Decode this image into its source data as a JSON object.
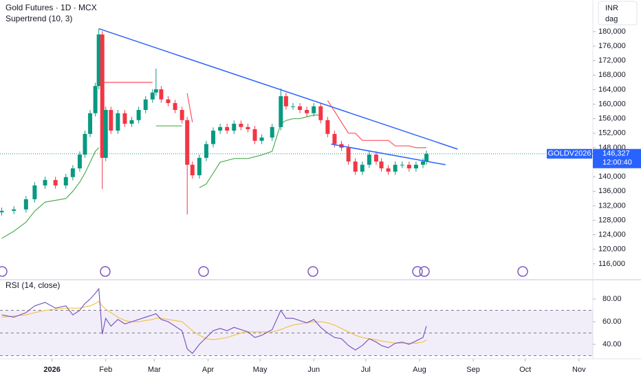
{
  "chart_data": [
    {
      "type": "candlestick",
      "title": "Gold Futures · 1D · MCX",
      "subtitle": "Supertrend (10, 3)",
      "currency": "INR",
      "unit": "dag",
      "symbol": "GOLDV2026",
      "countdown": "12:00:40",
      "up_color": "#089981",
      "down_color": "#f23645",
      "x": [
        -29,
        -22,
        -15,
        -10,
        -4,
        2,
        8,
        12,
        16,
        19,
        22,
        25,
        27,
        29,
        31,
        34,
        38,
        42,
        46,
        50,
        54,
        58,
        60,
        63,
        67,
        71,
        75,
        78,
        81,
        85,
        89,
        93,
        97,
        101,
        105,
        109,
        113,
        117,
        121,
        127,
        132,
        135,
        139,
        143,
        147,
        151,
        155,
        159,
        163,
        167,
        171,
        175,
        179,
        183,
        187,
        190,
        194,
        198,
        202,
        206,
        210,
        214,
        216
      ],
      "open": [
        130200,
        130600,
        131000,
        133800,
        137600,
        139100,
        137600,
        139900,
        142300,
        146100,
        151800,
        157500,
        165000,
        179200,
        145200,
        158400,
        152700,
        157500,
        154600,
        155600,
        158400,
        161300,
        163200,
        164100,
        161300,
        160300,
        158400,
        155600,
        143300,
        140400,
        145200,
        149000,
        152700,
        153700,
        152700,
        154600,
        153700,
        153100,
        149900,
        150800,
        153700,
        162200,
        159400,
        159400,
        158400,
        157500,
        159400,
        155600,
        151800,
        149000,
        148000,
        144200,
        141400,
        143300,
        146100,
        144200,
        142300,
        141400,
        143300,
        143300,
        142300,
        143300,
        144200
      ],
      "high": [
        131500,
        131900,
        134700,
        138500,
        140000,
        140000,
        140800,
        143200,
        147000,
        152700,
        158400,
        165900,
        180800,
        180100,
        159300,
        159300,
        158400,
        158400,
        156500,
        159300,
        162200,
        164100,
        169800,
        165000,
        162200,
        161200,
        159300,
        156500,
        144200,
        146100,
        149900,
        153600,
        154600,
        154600,
        155500,
        155500,
        154600,
        154000,
        151700,
        154600,
        164300,
        163100,
        160300,
        160300,
        159300,
        160300,
        160300,
        156500,
        152700,
        149900,
        148900,
        145100,
        144200,
        147000,
        147000,
        145100,
        143200,
        144200,
        144200,
        144200,
        144200,
        145100,
        147200
      ],
      "low": [
        129300,
        129700,
        130100,
        132900,
        136700,
        136700,
        136700,
        139000,
        141400,
        145200,
        150900,
        156600,
        164100,
        136600,
        144300,
        151800,
        151800,
        153700,
        153700,
        154700,
        157500,
        160400,
        162300,
        160400,
        159400,
        157500,
        154700,
        129600,
        139500,
        139500,
        144300,
        148100,
        151800,
        151800,
        151800,
        152800,
        152200,
        149000,
        149000,
        149900,
        152800,
        158500,
        158500,
        157500,
        156600,
        156600,
        154700,
        150900,
        148100,
        147100,
        143300,
        140500,
        140500,
        142400,
        143300,
        141400,
        140500,
        140500,
        142400,
        141400,
        141400,
        142400,
        143300
      ],
      "close": [
        130600,
        131000,
        133800,
        137600,
        139100,
        137600,
        139900,
        142300,
        146100,
        151800,
        157500,
        165000,
        179200,
        145200,
        158400,
        152700,
        157500,
        154600,
        155600,
        158400,
        161300,
        163200,
        164100,
        161300,
        160300,
        158400,
        155600,
        143300,
        140400,
        145200,
        149000,
        152700,
        153700,
        152700,
        154600,
        153700,
        153100,
        149900,
        150800,
        153700,
        162200,
        159400,
        159400,
        158400,
        157500,
        159400,
        155600,
        151800,
        149000,
        148000,
        144200,
        141400,
        143300,
        146100,
        144200,
        142300,
        141400,
        143300,
        143300,
        142300,
        143300,
        144200,
        146327
      ],
      "last_price": {
        "value": 146327,
        "label": "146,327"
      },
      "supertrend_up": {
        "color": "#4caf50",
        "values": [
          123000,
          125000,
          127500,
          130500,
          133000,
          133500,
          134000,
          136000,
          138500,
          141000,
          144000,
          147000,
          148000,
          null,
          null,
          null,
          null,
          null,
          null,
          null,
          null,
          null,
          154000,
          154000,
          154000,
          154000,
          154000,
          null,
          null,
          137000,
          138000,
          141000,
          144000,
          144500,
          145000,
          145000,
          145000,
          145500,
          146000,
          147000,
          154600,
          155500,
          156000,
          156000,
          156500,
          157000,
          157000,
          null,
          null,
          null,
          null,
          null,
          null,
          null,
          null,
          null,
          null,
          null,
          null,
          null,
          null,
          null,
          null
        ]
      },
      "supertrend_down": {
        "color": "#f7525f",
        "values": [
          null,
          null,
          null,
          null,
          null,
          null,
          null,
          null,
          null,
          null,
          null,
          null,
          null,
          166000,
          166000,
          166000,
          166000,
          166000,
          166000,
          166000,
          166000,
          166000,
          null,
          null,
          null,
          null,
          null,
          163000,
          155000,
          null,
          null,
          null,
          null,
          null,
          null,
          null,
          null,
          null,
          null,
          null,
          null,
          null,
          null,
          null,
          null,
          null,
          null,
          161000,
          158000,
          155000,
          152000,
          152000,
          150000,
          150000,
          150000,
          150000,
          150000,
          148500,
          148500,
          148500,
          148000,
          148000,
          148000
        ]
      },
      "trendline_color": "#2962ff",
      "trendlines": [
        {
          "x": [
            27,
            234
          ],
          "y": [
            180800,
            147600
          ]
        },
        {
          "x": [
            161,
            227
          ],
          "y": [
            149000,
            143300
          ]
        }
      ],
      "xlim": [
        -30,
        312
      ],
      "ylim": [
        112000,
        188700
      ],
      "yticks": [
        {
          "value": 116000,
          "label": "116,000"
        },
        {
          "value": 120000,
          "label": "120,000"
        },
        {
          "value": 124000,
          "label": "124,000"
        },
        {
          "value": 128000,
          "label": "128,000"
        },
        {
          "value": 132000,
          "label": "132,000"
        },
        {
          "value": 136000,
          "label": "136,000"
        },
        {
          "value": 140000,
          "label": "140,000"
        },
        {
          "value": 144000,
          "label": "144,000"
        },
        {
          "value": 148000,
          "label": "148,000"
        },
        {
          "value": 152000,
          "label": "152,000"
        },
        {
          "value": 156000,
          "label": "156,000"
        },
        {
          "value": 160000,
          "label": "160,000"
        },
        {
          "value": 164000,
          "label": "164,000"
        },
        {
          "value": 168000,
          "label": "168,000"
        },
        {
          "value": 172000,
          "label": "172,000"
        },
        {
          "value": 176000,
          "label": "176,000"
        },
        {
          "value": 180000,
          "label": "180,000"
        }
      ]
    },
    {
      "type": "line",
      "title": "RSI (14, close)",
      "x": [
        -29,
        -22,
        -15,
        -10,
        -4,
        2,
        8,
        12,
        16,
        19,
        22,
        25,
        27,
        29,
        31,
        34,
        38,
        42,
        46,
        50,
        54,
        58,
        60,
        63,
        67,
        71,
        75,
        78,
        81,
        85,
        89,
        93,
        97,
        101,
        105,
        109,
        113,
        117,
        121,
        127,
        132,
        135,
        139,
        143,
        147,
        151,
        155,
        159,
        163,
        167,
        171,
        175,
        179,
        183,
        187,
        190,
        194,
        198,
        202,
        206,
        210,
        214,
        216
      ],
      "series": [
        {
          "color": "#7e57c2",
          "values": [
            66,
            64,
            68,
            74,
            77,
            72,
            74,
            66,
            70,
            76,
            80,
            85,
            89,
            49,
            63,
            56,
            62,
            58,
            60,
            62,
            64,
            66,
            67,
            62,
            60,
            56,
            52,
            36,
            32,
            40,
            46,
            52,
            54,
            52,
            55,
            53,
            51,
            46,
            48,
            53,
            70,
            63,
            63,
            61,
            59,
            62,
            55,
            50,
            46,
            45,
            39,
            35,
            39,
            45,
            42,
            39,
            37,
            41,
            42,
            40,
            43,
            46,
            56
          ]
        },
        {
          "color": "#f0c34a",
          "values": [
            64,
            65,
            66,
            68,
            70,
            71,
            72,
            72,
            72,
            73,
            74,
            76,
            78,
            74,
            71,
            68,
            64,
            61,
            60,
            60,
            61,
            62,
            63,
            63,
            62,
            61,
            60,
            56,
            52,
            48,
            45,
            44,
            45,
            46,
            48,
            50,
            51,
            51,
            51,
            51,
            53,
            55,
            57,
            58,
            59,
            60,
            60,
            59,
            57,
            54,
            51,
            48,
            46,
            45,
            44,
            43,
            42,
            41,
            41,
            41,
            41,
            42,
            44
          ]
        }
      ],
      "bands": [
        30,
        50,
        70
      ],
      "band_color": "#7e57c2",
      "xlim": [
        -30,
        312
      ],
      "ylim": [
        28.5,
        95.2
      ],
      "yticks": [
        {
          "value": 40,
          "label": "40.00"
        },
        {
          "value": 60,
          "label": "60.00"
        },
        {
          "value": 80,
          "label": "80.00"
        }
      ],
      "xticks": [
        {
          "value": 0,
          "label": "2026"
        },
        {
          "value": 31,
          "label": "Feb"
        },
        {
          "value": 59,
          "label": "Mar"
        },
        {
          "value": 90,
          "label": "Apr"
        },
        {
          "value": 120,
          "label": "May"
        },
        {
          "value": 151,
          "label": "Jun"
        },
        {
          "value": 181,
          "label": "Jul"
        },
        {
          "value": 212,
          "label": "Aug"
        },
        {
          "value": 243,
          "label": "Sep"
        },
        {
          "value": 273,
          "label": "Oct"
        },
        {
          "value": 304,
          "label": "Nov"
        }
      ]
    }
  ]
}
